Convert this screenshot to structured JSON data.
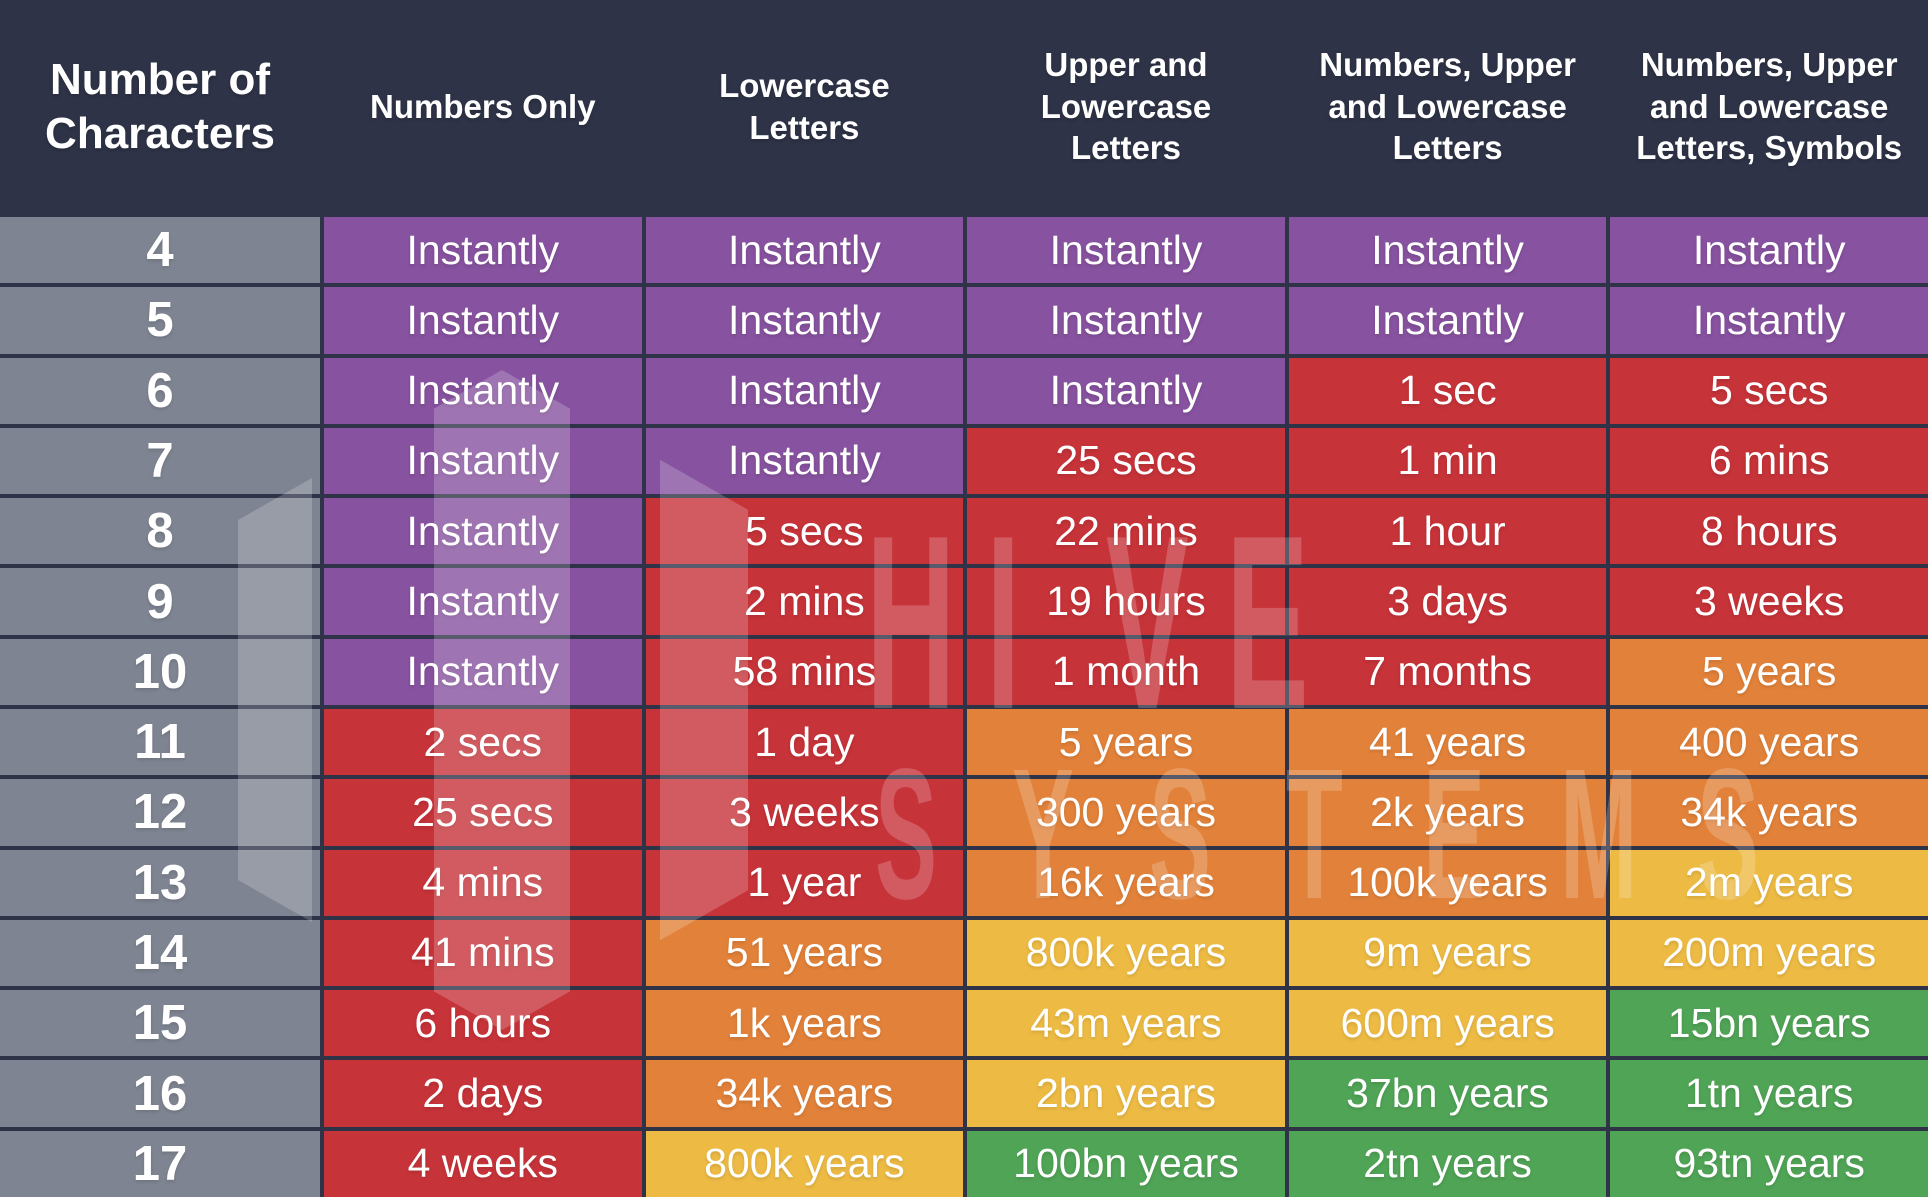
{
  "colors": {
    "background_navy": "#2e3347",
    "row_number_gray": "#7e8491",
    "purple": "#87529f",
    "red": "#c63339",
    "orange": "#e2823a",
    "yellow": "#edbb44",
    "green": "#50a456",
    "text_white": "#ffffff"
  },
  "watermark": {
    "word1": "HIVE",
    "word2": "SYSTEMS"
  },
  "chart_data": {
    "type": "table",
    "corner_header": "Number of Characters",
    "columns": [
      "Numbers Only",
      "Lowercase Letters",
      "Upper and Lowercase Letters",
      "Numbers, Upper and Lowercase Letters",
      "Numbers, Upper and Lowercase Letters, Symbols"
    ],
    "rows": [
      {
        "characters": "4",
        "cells": [
          {
            "time": "Instantly",
            "level": "purple"
          },
          {
            "time": "Instantly",
            "level": "purple"
          },
          {
            "time": "Instantly",
            "level": "purple"
          },
          {
            "time": "Instantly",
            "level": "purple"
          },
          {
            "time": "Instantly",
            "level": "purple"
          }
        ]
      },
      {
        "characters": "5",
        "cells": [
          {
            "time": "Instantly",
            "level": "purple"
          },
          {
            "time": "Instantly",
            "level": "purple"
          },
          {
            "time": "Instantly",
            "level": "purple"
          },
          {
            "time": "Instantly",
            "level": "purple"
          },
          {
            "time": "Instantly",
            "level": "purple"
          }
        ]
      },
      {
        "characters": "6",
        "cells": [
          {
            "time": "Instantly",
            "level": "purple"
          },
          {
            "time": "Instantly",
            "level": "purple"
          },
          {
            "time": "Instantly",
            "level": "purple"
          },
          {
            "time": "1 sec",
            "level": "red"
          },
          {
            "time": "5 secs",
            "level": "red"
          }
        ]
      },
      {
        "characters": "7",
        "cells": [
          {
            "time": "Instantly",
            "level": "purple"
          },
          {
            "time": "Instantly",
            "level": "purple"
          },
          {
            "time": "25 secs",
            "level": "red"
          },
          {
            "time": "1 min",
            "level": "red"
          },
          {
            "time": "6 mins",
            "level": "red"
          }
        ]
      },
      {
        "characters": "8",
        "cells": [
          {
            "time": "Instantly",
            "level": "purple"
          },
          {
            "time": "5 secs",
            "level": "red"
          },
          {
            "time": "22 mins",
            "level": "red"
          },
          {
            "time": "1 hour",
            "level": "red"
          },
          {
            "time": "8 hours",
            "level": "red"
          }
        ]
      },
      {
        "characters": "9",
        "cells": [
          {
            "time": "Instantly",
            "level": "purple"
          },
          {
            "time": "2 mins",
            "level": "red"
          },
          {
            "time": "19 hours",
            "level": "red"
          },
          {
            "time": "3 days",
            "level": "red"
          },
          {
            "time": "3 weeks",
            "level": "red"
          }
        ]
      },
      {
        "characters": "10",
        "cells": [
          {
            "time": "Instantly",
            "level": "purple"
          },
          {
            "time": "58 mins",
            "level": "red"
          },
          {
            "time": "1 month",
            "level": "red"
          },
          {
            "time": "7 months",
            "level": "red"
          },
          {
            "time": "5 years",
            "level": "orange"
          }
        ]
      },
      {
        "characters": "11",
        "cells": [
          {
            "time": "2 secs",
            "level": "red"
          },
          {
            "time": "1 day",
            "level": "red"
          },
          {
            "time": "5 years",
            "level": "orange"
          },
          {
            "time": "41 years",
            "level": "orange"
          },
          {
            "time": "400 years",
            "level": "orange"
          }
        ]
      },
      {
        "characters": "12",
        "cells": [
          {
            "time": "25 secs",
            "level": "red"
          },
          {
            "time": "3 weeks",
            "level": "red"
          },
          {
            "time": "300 years",
            "level": "orange"
          },
          {
            "time": "2k years",
            "level": "orange"
          },
          {
            "time": "34k years",
            "level": "orange"
          }
        ]
      },
      {
        "characters": "13",
        "cells": [
          {
            "time": "4 mins",
            "level": "red"
          },
          {
            "time": "1 year",
            "level": "red"
          },
          {
            "time": "16k years",
            "level": "orange"
          },
          {
            "time": "100k years",
            "level": "orange"
          },
          {
            "time": "2m years",
            "level": "yellow"
          }
        ]
      },
      {
        "characters": "14",
        "cells": [
          {
            "time": "41 mins",
            "level": "red"
          },
          {
            "time": "51 years",
            "level": "orange"
          },
          {
            "time": "800k years",
            "level": "yellow"
          },
          {
            "time": "9m years",
            "level": "yellow"
          },
          {
            "time": "200m years",
            "level": "yellow"
          }
        ]
      },
      {
        "characters": "15",
        "cells": [
          {
            "time": "6 hours",
            "level": "red"
          },
          {
            "time": "1k years",
            "level": "orange"
          },
          {
            "time": "43m years",
            "level": "yellow"
          },
          {
            "time": "600m years",
            "level": "yellow"
          },
          {
            "time": "15bn years",
            "level": "green"
          }
        ]
      },
      {
        "characters": "16",
        "cells": [
          {
            "time": "2 days",
            "level": "red"
          },
          {
            "time": "34k years",
            "level": "orange"
          },
          {
            "time": "2bn years",
            "level": "yellow"
          },
          {
            "time": "37bn years",
            "level": "green"
          },
          {
            "time": "1tn years",
            "level": "green"
          }
        ]
      },
      {
        "characters": "17",
        "cells": [
          {
            "time": "4 weeks",
            "level": "red"
          },
          {
            "time": "800k years",
            "level": "yellow"
          },
          {
            "time": "100bn years",
            "level": "green"
          },
          {
            "time": "2tn years",
            "level": "green"
          },
          {
            "time": "93tn years",
            "level": "green"
          }
        ]
      }
    ]
  }
}
